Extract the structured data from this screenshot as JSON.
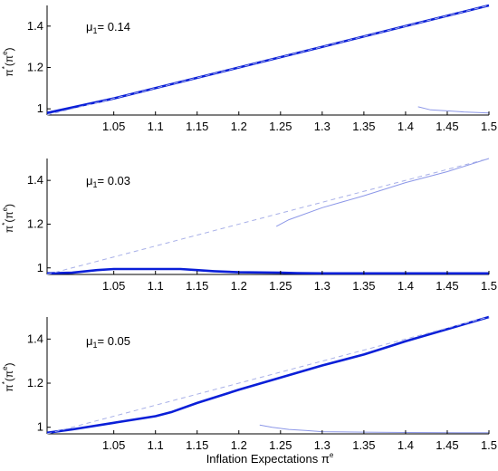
{
  "chart_data": [
    {
      "type": "line",
      "annotation": {
        "symbol": "μ",
        "subscript": "1",
        "text": "= 0.14"
      },
      "ylabel": {
        "prefix": "π",
        "sup_star": "*",
        "open": "(π",
        "sup_e": "e",
        "close": ")"
      },
      "xlim": [
        0.97,
        1.5
      ],
      "ylim": [
        0.97,
        1.5
      ],
      "x_ticks": [
        "1.05",
        "1.1",
        "1.15",
        "1.2",
        "1.25",
        "1.3",
        "1.35",
        "1.4",
        "1.45",
        "1.5"
      ],
      "y_ticks": [
        "1",
        "1.2",
        "1.4"
      ],
      "series": [
        {
          "role": "thick",
          "x": [
            0.97,
            1.05,
            1.1,
            1.2,
            1.3,
            1.4,
            1.5
          ],
          "y": [
            0.98,
            1.05,
            1.1,
            1.2,
            1.3,
            1.4,
            1.5
          ]
        },
        {
          "role": "thin",
          "x": [
            1.415,
            1.43,
            1.45,
            1.47,
            1.5
          ],
          "y": [
            1.01,
            0.995,
            0.99,
            0.985,
            0.98
          ]
        },
        {
          "role": "dashed",
          "x": [
            0.97,
            1.5
          ],
          "y": [
            0.97,
            1.5
          ]
        }
      ]
    },
    {
      "type": "line",
      "annotation": {
        "symbol": "μ",
        "subscript": "1",
        "text": "= 0.03"
      },
      "ylabel": {
        "prefix": "π",
        "sup_star": "*",
        "open": "(π",
        "sup_e": "e",
        "close": ")"
      },
      "xlim": [
        0.97,
        1.5
      ],
      "ylim": [
        0.97,
        1.5
      ],
      "x_ticks": [
        "1.05",
        "1.1",
        "1.15",
        "1.2",
        "1.25",
        "1.3",
        "1.35",
        "1.4",
        "1.45",
        "1.5"
      ],
      "y_ticks": [
        "1",
        "1.2",
        "1.4"
      ],
      "series": [
        {
          "role": "thick",
          "x": [
            0.97,
            1.0,
            1.03,
            1.05,
            1.1,
            1.13,
            1.15,
            1.17,
            1.2,
            1.25,
            1.27,
            1.3,
            1.5
          ],
          "y": [
            0.975,
            0.978,
            0.99,
            0.995,
            0.995,
            0.995,
            0.99,
            0.985,
            0.98,
            0.978,
            0.976,
            0.975,
            0.975
          ]
        },
        {
          "role": "thin",
          "x": [
            1.245,
            1.26,
            1.3,
            1.35,
            1.4,
            1.45,
            1.5
          ],
          "y": [
            1.19,
            1.22,
            1.275,
            1.33,
            1.39,
            1.44,
            1.5
          ]
        },
        {
          "role": "dashed",
          "x": [
            0.97,
            1.5
          ],
          "y": [
            0.97,
            1.5
          ]
        }
      ]
    },
    {
      "type": "line",
      "annotation": {
        "symbol": "μ",
        "subscript": "1",
        "text": "= 0.05"
      },
      "ylabel": {
        "prefix": "π",
        "sup_star": "*",
        "open": "(π",
        "sup_e": "e",
        "close": ")"
      },
      "xlim": [
        0.97,
        1.5
      ],
      "ylim": [
        0.97,
        1.5
      ],
      "x_ticks": [
        "1.05",
        "1.1",
        "1.15",
        "1.2",
        "1.25",
        "1.3",
        "1.35",
        "1.4",
        "1.45",
        "1.5"
      ],
      "y_ticks": [
        "1",
        "1.2",
        "1.4"
      ],
      "series": [
        {
          "role": "thick",
          "x": [
            0.97,
            1.0,
            1.05,
            1.1,
            1.12,
            1.15,
            1.2,
            1.25,
            1.3,
            1.35,
            1.4,
            1.45,
            1.5
          ],
          "y": [
            0.975,
            0.99,
            1.02,
            1.05,
            1.07,
            1.11,
            1.17,
            1.225,
            1.28,
            1.33,
            1.39,
            1.445,
            1.5
          ]
        },
        {
          "role": "thin",
          "x": [
            1.225,
            1.24,
            1.26,
            1.28,
            1.3,
            1.35,
            1.4,
            1.5
          ],
          "y": [
            1.01,
            1.0,
            0.99,
            0.985,
            0.98,
            0.978,
            0.976,
            0.975
          ]
        },
        {
          "role": "dashed",
          "x": [
            0.97,
            1.5
          ],
          "y": [
            0.97,
            1.5
          ]
        }
      ]
    }
  ],
  "xaxis_label": {
    "text": "Inflation Expectations π",
    "sup": "e"
  },
  "colors": {
    "thick": "#0a1fd8",
    "thin": "#8c97e8",
    "dashed": "#a8b0e8",
    "axis": "#000000"
  }
}
